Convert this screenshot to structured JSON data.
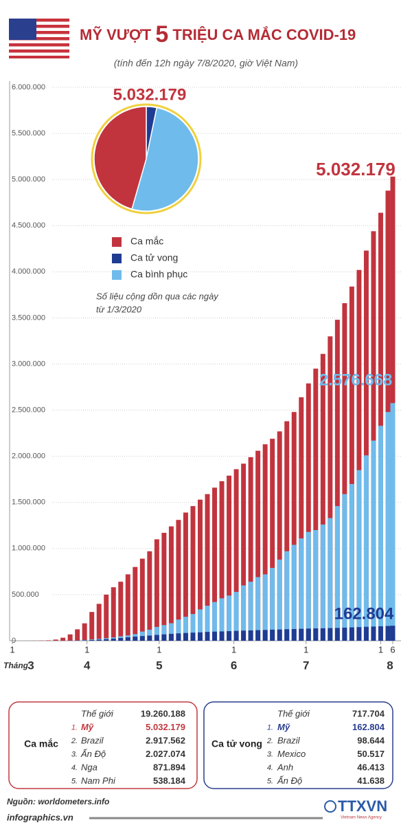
{
  "header": {
    "title_parts": [
      "MỸ VƯỢT",
      "5",
      "TRIỆU CA MẮC COVID-19"
    ],
    "subtitle": "(tính đến 12h ngày 7/8/2020, giờ Việt Nam)"
  },
  "chart_data": [
    {
      "type": "bar",
      "x": [
        0,
        3,
        6,
        9,
        12,
        15,
        18,
        21,
        24,
        27,
        30,
        33,
        36,
        39,
        42,
        45,
        48,
        51,
        54,
        57,
        60,
        63,
        66,
        69,
        72,
        75,
        78,
        81,
        84,
        87,
        90,
        93,
        96,
        99,
        102,
        105,
        108,
        111,
        114,
        117,
        120,
        123,
        126,
        129,
        132,
        135,
        138,
        141,
        144,
        147,
        150,
        153,
        156,
        158
      ],
      "xlim": [
        0,
        158
      ],
      "xticks": [
        {
          "value": 0,
          "label": "1"
        },
        {
          "value": 31,
          "label": "1"
        },
        {
          "value": 61,
          "label": "1"
        },
        {
          "value": 92,
          "label": "1"
        },
        {
          "value": 122,
          "label": "1"
        },
        {
          "value": 153,
          "label": "1"
        },
        {
          "value": 158,
          "label": "6"
        }
      ],
      "month_axis_label": "Tháng",
      "months": [
        "3",
        "4",
        "5",
        "6",
        "7",
        "8"
      ],
      "ylim": [
        0,
        6000000
      ],
      "yticks": [
        0,
        {
          "value": 500000,
          "label": "500.000"
        },
        {
          "value": 1000000,
          "label": "1.000.000"
        },
        {
          "value": 1500000,
          "label": "1.500.000"
        },
        {
          "value": 2000000,
          "label": "2.000.000"
        },
        {
          "value": 2500000,
          "label": "2.500.000"
        },
        {
          "value": 3000000,
          "label": "3.000.000"
        },
        {
          "value": 3500000,
          "label": "3.500.000"
        },
        {
          "value": 4000000,
          "label": "4.000.000"
        },
        {
          "value": 4500000,
          "label": "4.500.000"
        },
        {
          "value": 5000000,
          "label": "5.000.000"
        },
        {
          "value": 5500000,
          "label": "5.500.000"
        },
        {
          "value": 6000000,
          "label": "6.000.000"
        }
      ],
      "grid": true,
      "series": [
        {
          "name": "Ca mắc",
          "color": "#c1343e",
          "values": [
            70,
            200,
            500,
            1000,
            2200,
            4500,
            13000,
            33000,
            69000,
            124000,
            189000,
            312000,
            400000,
            500000,
            580000,
            640000,
            720000,
            800000,
            890000,
            970000,
            1100000,
            1170000,
            1240000,
            1310000,
            1390000,
            1460000,
            1530000,
            1590000,
            1660000,
            1730000,
            1790000,
            1860000,
            1920000,
            1990000,
            2060000,
            2130000,
            2190000,
            2270000,
            2380000,
            2480000,
            2640000,
            2790000,
            2950000,
            3110000,
            3300000,
            3480000,
            3660000,
            3840000,
            4020000,
            4230000,
            4440000,
            4640000,
            4880000,
            5032179
          ]
        },
        {
          "name": "Ca tử vong",
          "color": "#1f3c93",
          "values": [
            0,
            10,
            20,
            30,
            50,
            100,
            200,
            500,
            1000,
            2200,
            4000,
            8000,
            12000,
            17000,
            23000,
            30000,
            38000,
            45000,
            51000,
            56000,
            63000,
            69000,
            75000,
            80000,
            84000,
            88000,
            91000,
            96000,
            99000,
            101000,
            104000,
            107000,
            110000,
            112000,
            115000,
            117000,
            120000,
            122000,
            125000,
            127000,
            130000,
            132000,
            134000,
            135000,
            137000,
            139000,
            142000,
            145000,
            148000,
            151000,
            154000,
            157000,
            160000,
            162804
          ]
        },
        {
          "name": "Ca bình phục",
          "color": "#6fbbec",
          "values": [
            0,
            0,
            10,
            10,
            20,
            50,
            100,
            200,
            600,
            3000,
            8000,
            15000,
            21000,
            28000,
            36000,
            48000,
            58000,
            72000,
            100000,
            120000,
            150000,
            170000,
            190000,
            230000,
            260000,
            290000,
            340000,
            380000,
            420000,
            460000,
            490000,
            530000,
            600000,
            640000,
            690000,
            720000,
            790000,
            880000,
            970000,
            1040000,
            1110000,
            1180000,
            1200000,
            1260000,
            1330000,
            1460000,
            1590000,
            1700000,
            1850000,
            2010000,
            2170000,
            2330000,
            2480000,
            2576668
          ]
        }
      ],
      "annotations": [
        {
          "text": "5.032.179",
          "value": 5032179
        },
        {
          "text": "2.576.668",
          "value": 2576668
        },
        {
          "text": "162.804",
          "value": 162804
        }
      ],
      "note": [
        "Số liệu cộng dồn qua các ngày",
        "từ 1/3/2020"
      ]
    },
    {
      "type": "pie",
      "title": "5.032.179",
      "values": [
        162804,
        2576668,
        2292707
      ],
      "colors": [
        "#1f3c93",
        "#6fbbec",
        "#c1343e"
      ]
    }
  ],
  "tables": [
    {
      "title": "Ca mắc",
      "rows": [
        {
          "name": "Thế giới",
          "value": "19.260.188"
        },
        {
          "rank": "1.",
          "name": "Mỹ",
          "value": "5.032.179"
        },
        {
          "rank": "2.",
          "name": "Brazil",
          "value": "2.917.562"
        },
        {
          "rank": "3.",
          "name": "Ấn Độ",
          "value": "2.027.074"
        },
        {
          "rank": "4.",
          "name": "Nga",
          "value": "871.894"
        },
        {
          "rank": "5.",
          "name": "Nam Phi",
          "value": "538.184"
        }
      ]
    },
    {
      "title": "Ca tử vong",
      "rows": [
        {
          "name": "Thế giới",
          "value": "717.704"
        },
        {
          "rank": "1.",
          "name": "Mỹ",
          "value": "162.804"
        },
        {
          "rank": "2.",
          "name": "Brazil",
          "value": "98.644"
        },
        {
          "rank": "3.",
          "name": "Mexico",
          "value": "50.517"
        },
        {
          "rank": "4.",
          "name": "Anh",
          "value": "46.413"
        },
        {
          "rank": "5.",
          "name": "Ấn Độ",
          "value": "41.638"
        }
      ]
    }
  ],
  "footer": {
    "source": "Nguồn: worldometers.info",
    "site": "infographics.vn",
    "logo": "TTXVN",
    "agency": "Vietnam News Agency"
  }
}
